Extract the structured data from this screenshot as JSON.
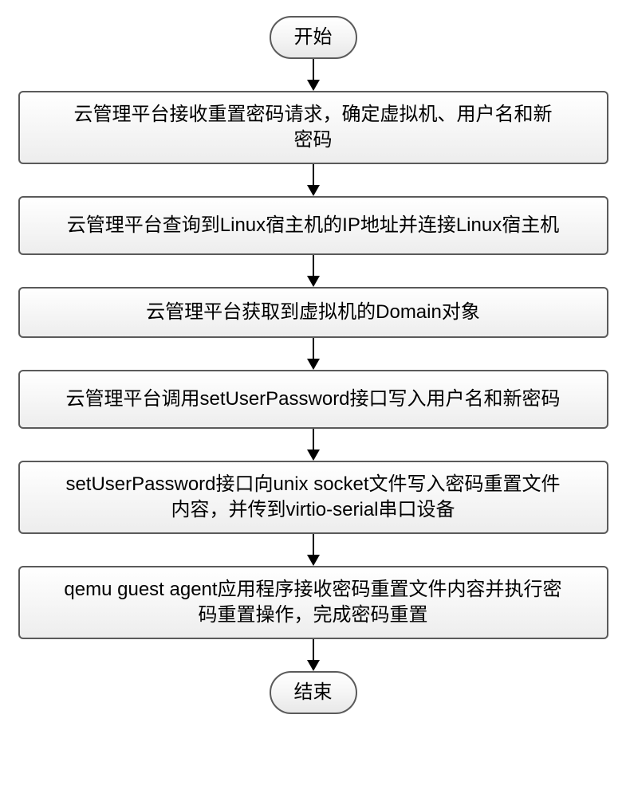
{
  "flowchart": {
    "type": "flowchart",
    "background_color": "#ffffff",
    "node_border_color": "#5a5a5a",
    "node_fill_top": "#ffffff",
    "node_fill_bottom": "#e8e8e8",
    "arrow_color": "#000000",
    "text_color": "#000000",
    "terminal_fontsize": 24,
    "process_fontsize": 24,
    "terminal_border_radius": 27,
    "process_border_radius": 6,
    "border_width": 2,
    "nodes": {
      "start": {
        "shape": "terminal",
        "label": "开始"
      },
      "step1": {
        "shape": "process",
        "label": "云管理平台接收重置密码请求，确定虚拟机、用户名和新\n密码"
      },
      "step2": {
        "shape": "process",
        "label": "云管理平台查询到Linux宿主机的IP地址并连接Linux宿主机"
      },
      "step3": {
        "shape": "process",
        "label": "云管理平台获取到虚拟机的Domain对象"
      },
      "step4": {
        "shape": "process",
        "label": "云管理平台调用setUserPassword接口写入用户名和新密码"
      },
      "step5": {
        "shape": "process",
        "label": "setUserPassword接口向unix socket文件写入密码重置文件\n内容，并传到virtio-serial串口设备"
      },
      "step6": {
        "shape": "process",
        "label": "qemu guest agent应用程序接收密码重置文件内容并执行密\n码重置操作，完成密码重置"
      },
      "end": {
        "shape": "terminal",
        "label": "结束"
      }
    },
    "edges": [
      [
        "start",
        "step1"
      ],
      [
        "step1",
        "step2"
      ],
      [
        "step2",
        "step3"
      ],
      [
        "step3",
        "step4"
      ],
      [
        "step4",
        "step5"
      ],
      [
        "step5",
        "step6"
      ],
      [
        "step6",
        "end"
      ]
    ]
  }
}
